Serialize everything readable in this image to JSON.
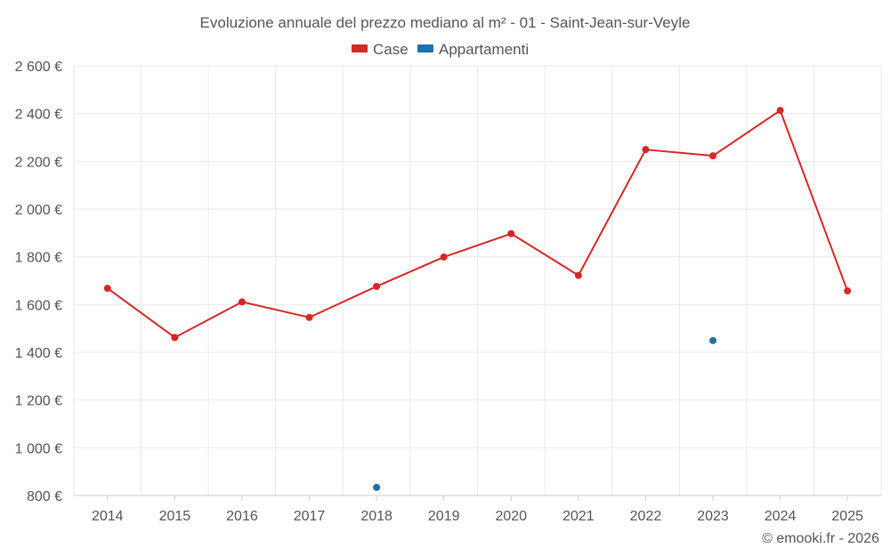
{
  "chart_data": {
    "type": "line",
    "title": "Evoluzione annuale del prezzo mediano al m² - 01 - Saint-Jean-sur-Veyle",
    "xlabel": "",
    "ylabel": "",
    "categories": [
      "2014",
      "2015",
      "2016",
      "2017",
      "2018",
      "2019",
      "2020",
      "2021",
      "2022",
      "2023",
      "2024",
      "2025"
    ],
    "ylim": [
      800,
      2600
    ],
    "yticks": [
      800,
      1000,
      1200,
      1400,
      1600,
      1800,
      2000,
      2200,
      2400,
      2600
    ],
    "ytick_labels": [
      "800 €",
      "1 000 €",
      "1 200 €",
      "1 400 €",
      "1 600 €",
      "1 800 €",
      "2 000 €",
      "2 200 €",
      "2 400 €",
      "2 600 €"
    ],
    "grid": true,
    "legend_position": "top-center",
    "series": [
      {
        "name": "Case",
        "color": "#d62728",
        "values": [
          1668,
          1462,
          1611,
          1546,
          1676,
          1799,
          1897,
          1722,
          2249,
          2223,
          2413,
          1657
        ]
      },
      {
        "name": "Appartamenti",
        "color": "#1f6fa8",
        "values": [
          null,
          null,
          null,
          null,
          834,
          null,
          null,
          null,
          null,
          1449,
          null,
          null
        ]
      }
    ]
  },
  "credit": "© emooki.fr - 2026"
}
